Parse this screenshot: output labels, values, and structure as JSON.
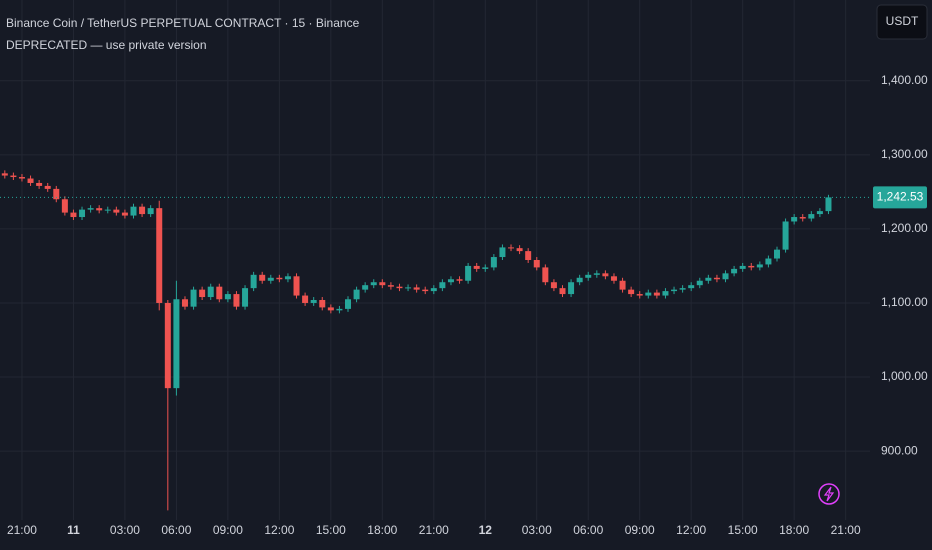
{
  "chart_data": {
    "type": "candlestick",
    "title": "Binance Coin / TetherUS PERPETUAL CONTRACT · 15 · Binance",
    "subtitle": "DEPRECATED — use private version",
    "currency_button": "USDT",
    "up_color": "#26a69a",
    "down_color": "#ef5350",
    "grid": true,
    "open": [
      1275,
      1272,
      1270,
      1268,
      1262,
      1258,
      1254,
      1240,
      1222,
      1216,
      1226,
      1228,
      1225,
      1226,
      1222,
      1218,
      1230,
      1220,
      1228,
      1100,
      985,
      1105,
      1095,
      1118,
      1108,
      1122,
      1105,
      1112,
      1095,
      1120,
      1138,
      1130,
      1134,
      1132,
      1136,
      1110,
      1100,
      1104,
      1094,
      1090,
      1092,
      1105,
      1118,
      1124,
      1128,
      1124,
      1122,
      1120,
      1121,
      1118,
      1116,
      1120,
      1128,
      1132,
      1130,
      1150,
      1146,
      1148,
      1162,
      1175,
      1174,
      1170,
      1158,
      1148,
      1128,
      1120,
      1112,
      1128,
      1134,
      1138,
      1140,
      1136,
      1130,
      1118,
      1112,
      1110,
      1114,
      1110,
      1116,
      1118,
      1120,
      1124,
      1130,
      1134,
      1132,
      1140,
      1146,
      1150,
      1148,
      1152,
      1160,
      1172,
      1210,
      1216,
      1214,
      1220,
      1224
    ],
    "high": [
      1279,
      1276,
      1274,
      1272,
      1266,
      1262,
      1258,
      1244,
      1226,
      1230,
      1232,
      1232,
      1230,
      1230,
      1226,
      1234,
      1234,
      1232,
      1238,
      1104,
      1130,
      1109,
      1122,
      1122,
      1126,
      1126,
      1116,
      1116,
      1124,
      1142,
      1142,
      1138,
      1138,
      1140,
      1140,
      1114,
      1108,
      1108,
      1098,
      1096,
      1109,
      1122,
      1128,
      1132,
      1132,
      1128,
      1126,
      1125,
      1125,
      1122,
      1124,
      1132,
      1136,
      1136,
      1154,
      1154,
      1152,
      1166,
      1179,
      1179,
      1178,
      1174,
      1162,
      1152,
      1132,
      1124,
      1132,
      1138,
      1142,
      1144,
      1144,
      1140,
      1134,
      1122,
      1116,
      1118,
      1118,
      1120,
      1122,
      1124,
      1128,
      1134,
      1138,
      1138,
      1144,
      1150,
      1154,
      1154,
      1156,
      1164,
      1176,
      1214,
      1220,
      1220,
      1224,
      1228,
      1246
    ],
    "low": [
      1268,
      1266,
      1264,
      1258,
      1254,
      1250,
      1236,
      1218,
      1212,
      1212,
      1222,
      1221,
      1221,
      1218,
      1214,
      1214,
      1216,
      1216,
      1090,
      820,
      975,
      1091,
      1091,
      1104,
      1104,
      1101,
      1101,
      1091,
      1091,
      1116,
      1126,
      1126,
      1128,
      1128,
      1106,
      1096,
      1096,
      1090,
      1086,
      1086,
      1088,
      1101,
      1114,
      1120,
      1120,
      1118,
      1116,
      1116,
      1114,
      1112,
      1112,
      1116,
      1124,
      1126,
      1126,
      1142,
      1142,
      1144,
      1158,
      1170,
      1166,
      1154,
      1144,
      1124,
      1116,
      1108,
      1108,
      1124,
      1130,
      1134,
      1132,
      1126,
      1114,
      1108,
      1106,
      1106,
      1106,
      1106,
      1112,
      1114,
      1116,
      1120,
      1126,
      1128,
      1128,
      1136,
      1142,
      1144,
      1144,
      1148,
      1156,
      1168,
      1206,
      1210,
      1210,
      1216,
      1220
    ],
    "close": [
      1272,
      1270,
      1268,
      1262,
      1258,
      1254,
      1240,
      1222,
      1216,
      1226,
      1228,
      1225,
      1226,
      1222,
      1218,
      1230,
      1220,
      1228,
      1100,
      985,
      1105,
      1095,
      1118,
      1108,
      1122,
      1105,
      1112,
      1095,
      1120,
      1138,
      1130,
      1134,
      1132,
      1136,
      1110,
      1100,
      1104,
      1094,
      1090,
      1092,
      1105,
      1118,
      1124,
      1128,
      1124,
      1122,
      1120,
      1121,
      1118,
      1116,
      1120,
      1128,
      1132,
      1130,
      1150,
      1146,
      1148,
      1162,
      1175,
      1174,
      1170,
      1158,
      1148,
      1128,
      1120,
      1112,
      1128,
      1134,
      1138,
      1140,
      1136,
      1130,
      1118,
      1112,
      1110,
      1114,
      1110,
      1116,
      1118,
      1120,
      1124,
      1130,
      1134,
      1132,
      1140,
      1146,
      1150,
      1148,
      1152,
      1160,
      1172,
      1210,
      1216,
      1214,
      1220,
      1224,
      1242.53
    ],
    "last_price": {
      "value": 1242.53,
      "label": "1,242.53"
    },
    "xlim": [
      -0.56,
      100.84
    ],
    "xticks": [
      {
        "value": 2,
        "label": "21:00"
      },
      {
        "value": 8,
        "label": "11"
      },
      {
        "value": 14,
        "label": "03:00"
      },
      {
        "value": 20,
        "label": "06:00"
      },
      {
        "value": 26,
        "label": "09:00"
      },
      {
        "value": 32,
        "label": "12:00"
      },
      {
        "value": 38,
        "label": "15:00"
      },
      {
        "value": 44,
        "label": "18:00"
      },
      {
        "value": 50,
        "label": "21:00"
      },
      {
        "value": 56,
        "label": "12"
      },
      {
        "value": 62,
        "label": "03:00"
      },
      {
        "value": 68,
        "label": "06:00"
      },
      {
        "value": 74,
        "label": "09:00"
      },
      {
        "value": 80,
        "label": "12:00"
      },
      {
        "value": 86,
        "label": "15:00"
      },
      {
        "value": 92,
        "label": "18:00"
      },
      {
        "value": 98,
        "label": "21:00"
      }
    ],
    "ylim": [
      807,
      1509
    ],
    "yticks": [
      {
        "value": 900,
        "label": "900.00"
      },
      {
        "value": 1000,
        "label": "1,000.00"
      },
      {
        "value": 1100,
        "label": "1,100.00"
      },
      {
        "value": 1200,
        "label": "1,200.00"
      },
      {
        "value": 1300,
        "label": "1,300.00"
      },
      {
        "value": 1400,
        "label": "1,400.00"
      }
    ]
  }
}
